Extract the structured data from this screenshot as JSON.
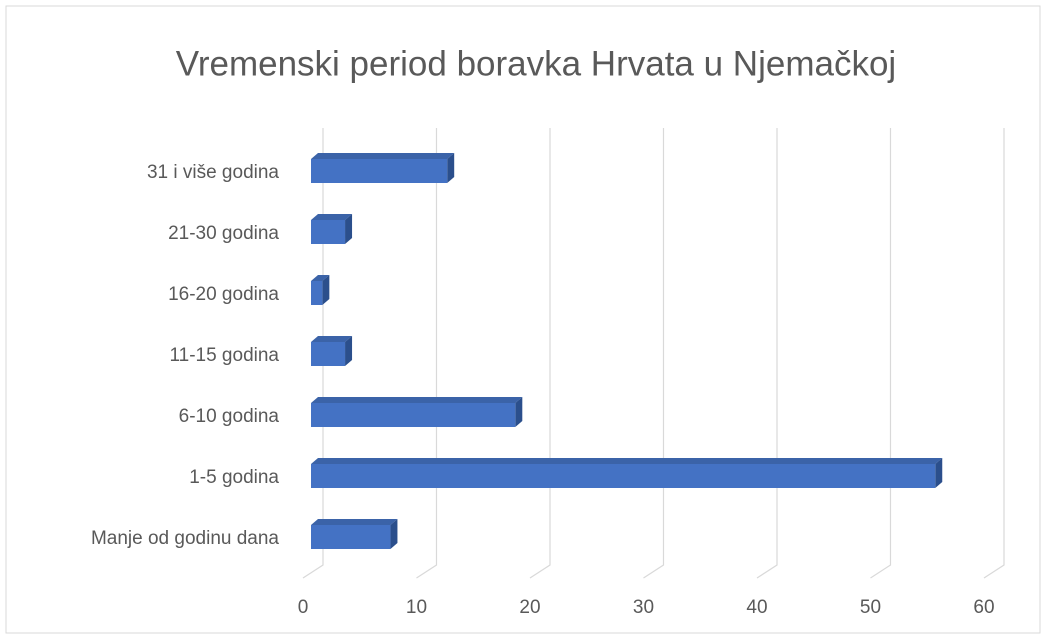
{
  "chart_data": {
    "type": "bar",
    "orientation": "horizontal",
    "3d": true,
    "title": "Vremenski period boravka Hrvata u Njemačkoj",
    "categories": [
      "Manje od godinu dana",
      "1-5 godina",
      "6-10 godina",
      "11-15 godina",
      "16-20 godina",
      "21-30 godina",
      "31 i više godina"
    ],
    "values": [
      7,
      55,
      18,
      3,
      1,
      3,
      12
    ],
    "color": "#4472c4",
    "xlim": [
      0,
      60
    ],
    "xticks": [
      0,
      10,
      20,
      30,
      40,
      50,
      60
    ],
    "grid": true
  }
}
